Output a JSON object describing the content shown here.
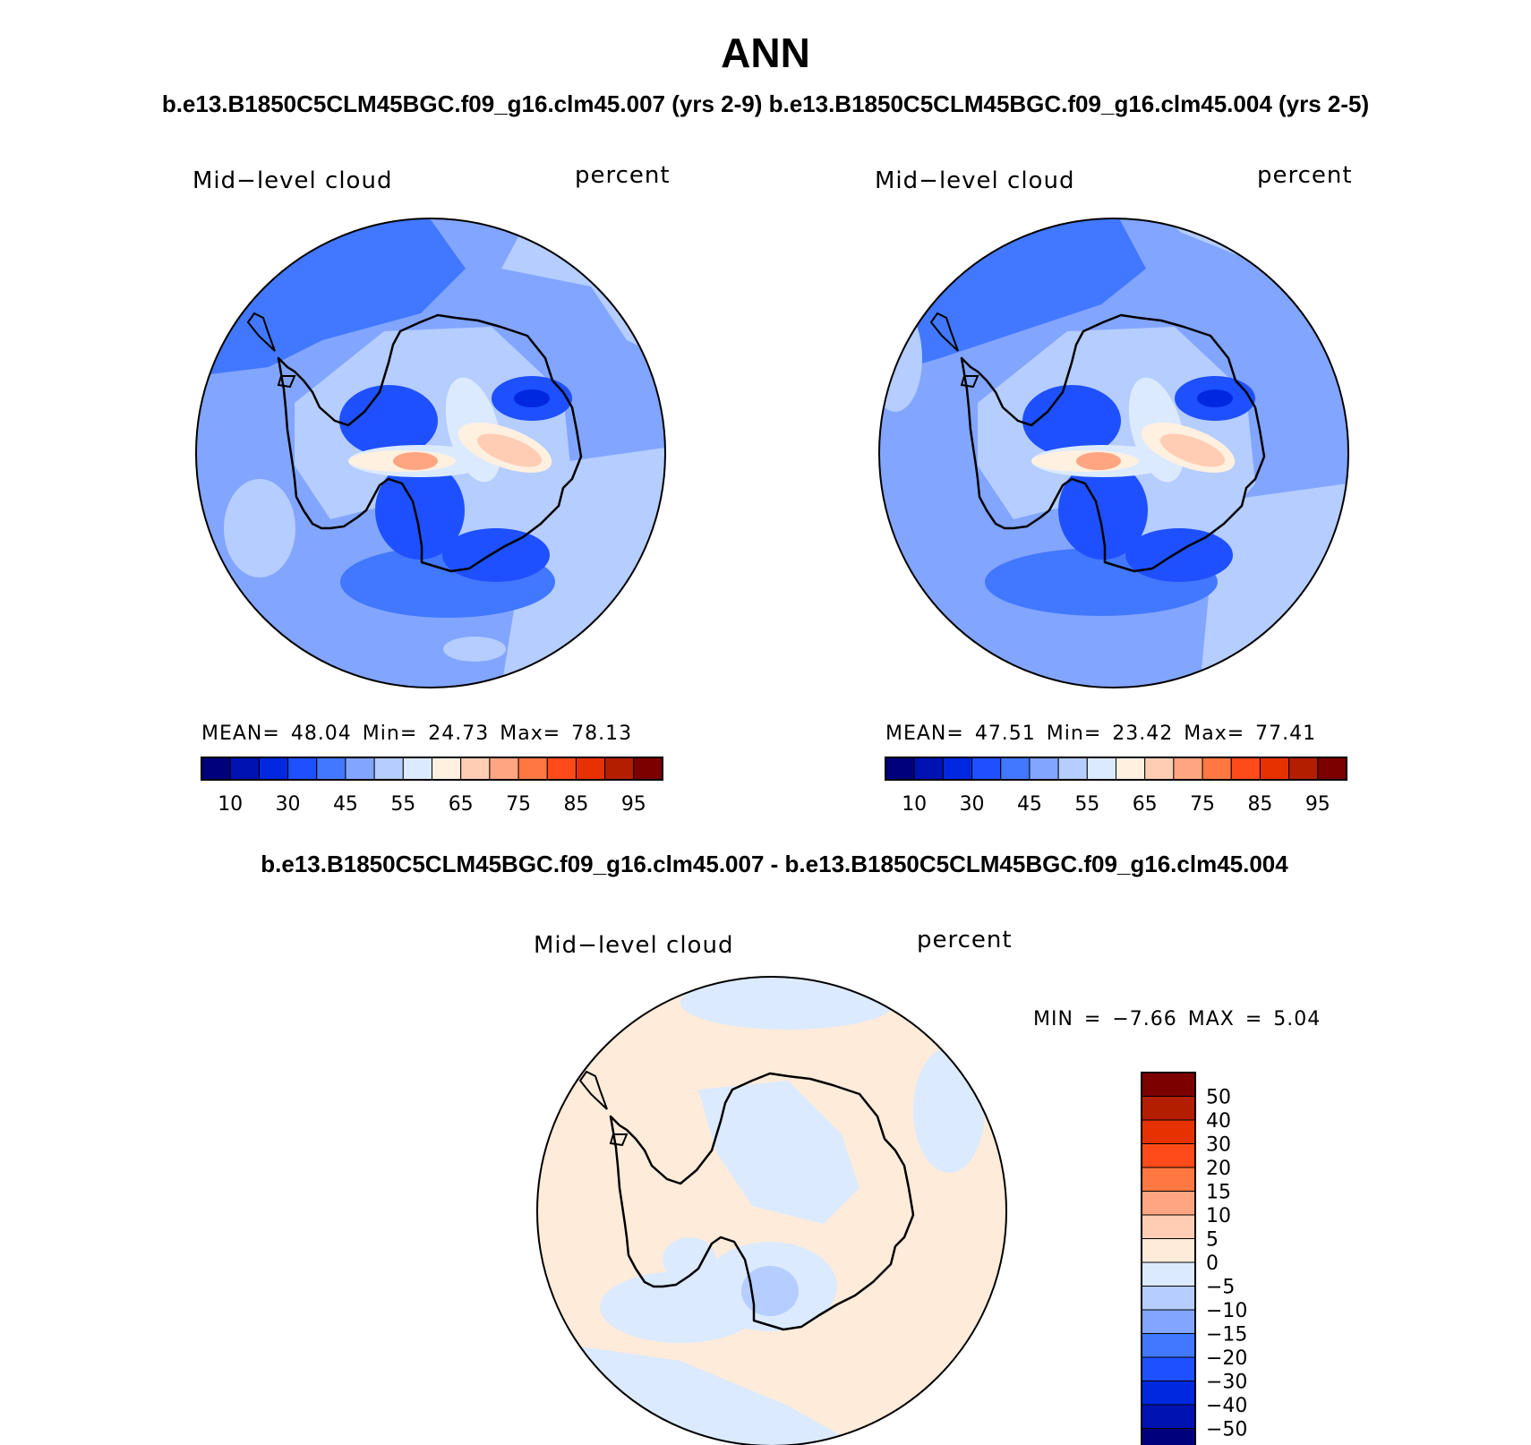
{
  "title": "ANN",
  "subtitle_top": "b.e13.B1850C5CLM45BGC.f09_g16.clm45.007 (yrs 2-9)  b.e13.B1850C5CLM45BGC.f09_g16.clm45.004 (yrs 2-5)",
  "subtitle_diff": "b.e13.B1850C5CLM45BGC.f09_g16.clm45.007 - b.e13.B1850C5CLM45BGC.f09_g16.clm45.004",
  "panels": [
    {
      "variable": "Mid−level cloud",
      "units": "percent",
      "stats": "MEAN=   48.04   Min=   24.73   Max=   78.13"
    },
    {
      "variable": "Mid−level cloud",
      "units": "percent",
      "stats": "MEAN=   47.51   Min=   23.42   Max=   77.41"
    },
    {
      "variable": "Mid−level cloud",
      "units": "percent",
      "stats": "MIN =   −7.66  MAX =    5.04"
    }
  ],
  "colorbar_main": {
    "colors": [
      "#00007d",
      "#0012b2",
      "#0028e0",
      "#1e50ff",
      "#4178ff",
      "#82a5ff",
      "#b5cdff",
      "#dbeaff",
      "#fff0e0",
      "#ffcdb4",
      "#ffa582",
      "#ff7841",
      "#ff4b19",
      "#e63200",
      "#b41e00",
      "#7d0000"
    ],
    "labels": [
      "10",
      "30",
      "45",
      "55",
      "65",
      "75",
      "85",
      "95"
    ]
  },
  "colorbar_diff": {
    "colors": [
      "#7d0000",
      "#b41e00",
      "#e63200",
      "#ff4b19",
      "#ff7841",
      "#ffa582",
      "#ffcdb4",
      "#ffebd9",
      "#dbeaff",
      "#b5cdff",
      "#82a5ff",
      "#4178ff",
      "#1e50ff",
      "#0028e0",
      "#0012b2",
      "#00007d"
    ],
    "labels": [
      "50",
      "40",
      "30",
      "20",
      "15",
      "10",
      "5",
      "0",
      "−5",
      "−10",
      "−15",
      "−20",
      "−30",
      "−40",
      "−50"
    ]
  },
  "colors": {
    "ocean_panel1": "#82a5ff",
    "ocean_panel2": "#82a5ff",
    "ocean_diff": "#ffebd9",
    "coastline": "#000000"
  }
}
